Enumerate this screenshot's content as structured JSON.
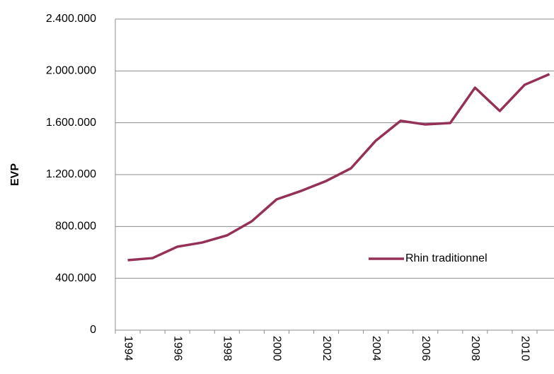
{
  "chart_data": {
    "type": "line",
    "y_label": "EVP",
    "categories": [
      "1994",
      null,
      "1996",
      null,
      "1998",
      null,
      "2000",
      null,
      "2002",
      null,
      "2004",
      null,
      "2006",
      null,
      "2008",
      null,
      "2010",
      null
    ],
    "series": [
      {
        "name": "Rhin traditionnel",
        "color": "#953158",
        "values": [
          540000,
          556000,
          644000,
          676000,
          731000,
          840000,
          1009000,
          1075000,
          1151000,
          1249000,
          1462000,
          1615000,
          1587000,
          1598000,
          1871000,
          1691000,
          1893000,
          1975000
        ]
      }
    ],
    "ylim": [
      0,
      2400000
    ],
    "yticks": [
      0,
      {
        "value": 400000,
        "label": "400.000"
      },
      {
        "value": 800000,
        "label": "800.000"
      },
      {
        "value": 1200000,
        "label": "1.200.000"
      },
      {
        "value": 1600000,
        "label": "1.600.000"
      },
      {
        "value": 2000000,
        "label": "2.000.000"
      },
      {
        "value": 2400000,
        "label": "2.400.000"
      }
    ],
    "grid": true,
    "legend": "right"
  }
}
